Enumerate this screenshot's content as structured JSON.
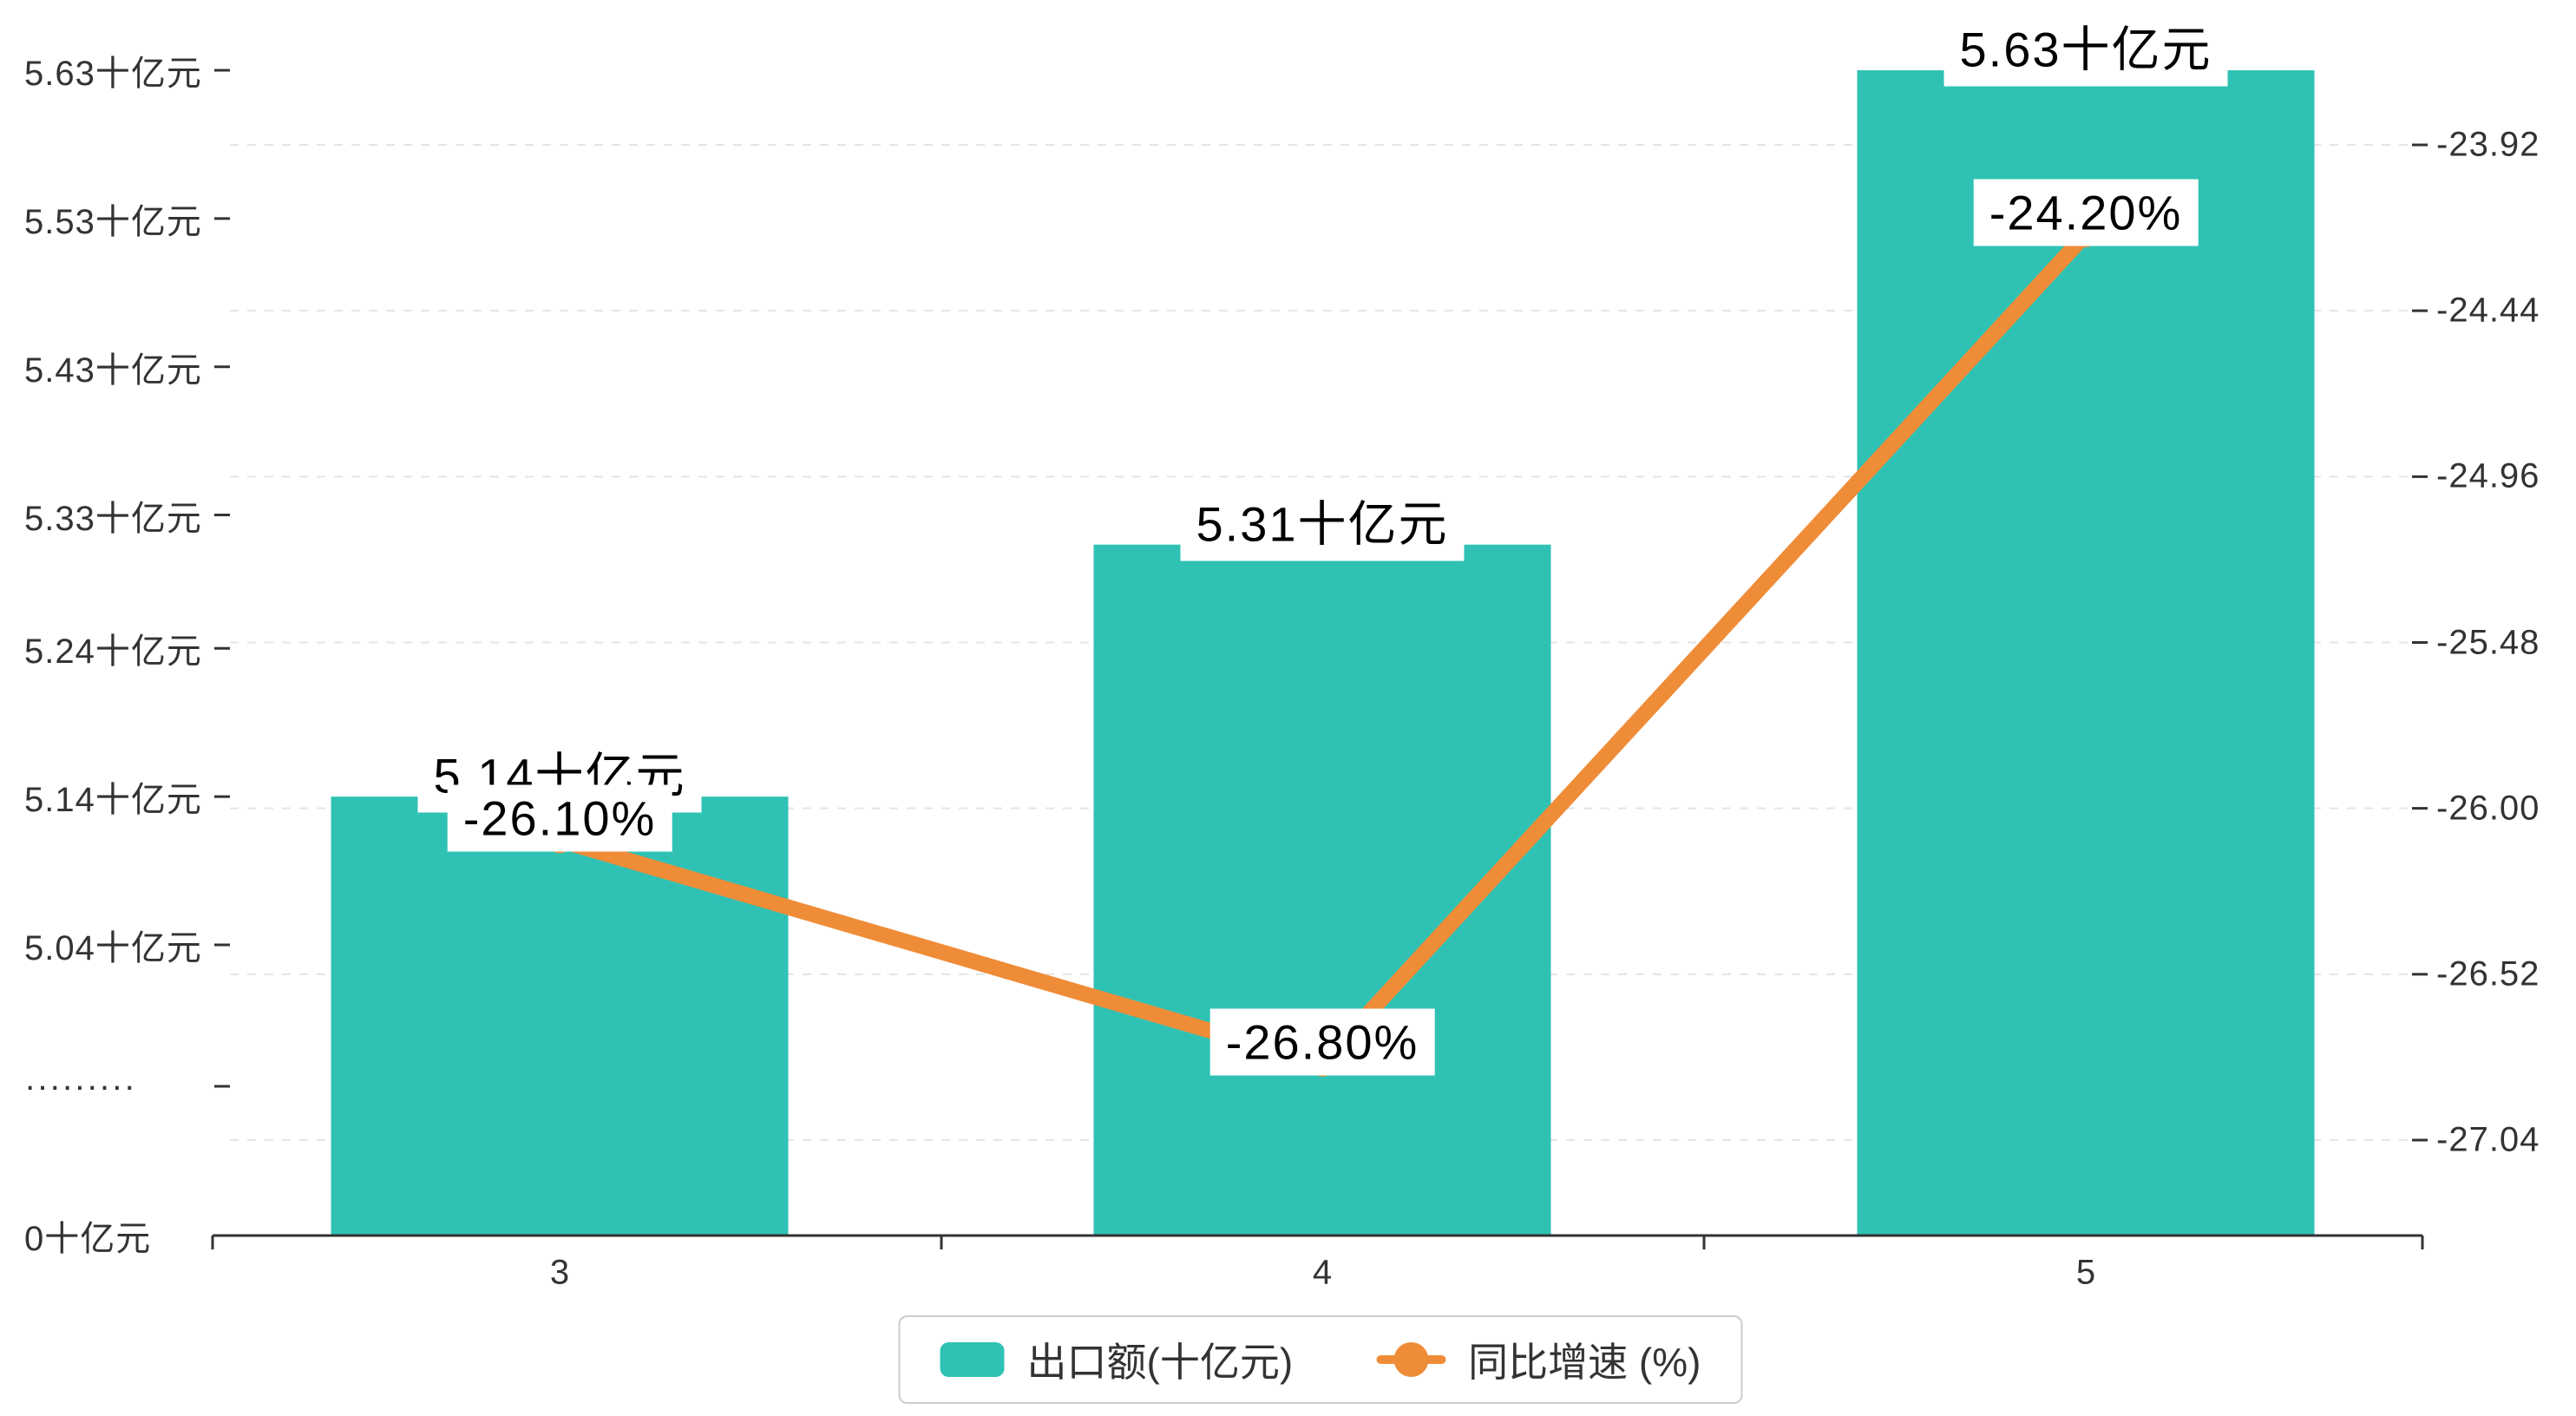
{
  "chart_data": {
    "type": "bar+line",
    "categories": [
      "3",
      "4",
      "5"
    ],
    "series": [
      {
        "name": "出口额(十亿元)",
        "type": "bar",
        "axis": "left",
        "color": "#2fc2b4",
        "values": [
          5.14,
          5.31,
          5.63
        ],
        "labels": [
          "5.14十亿元",
          "5.31十亿元",
          "5.63十亿元"
        ]
      },
      {
        "name": "同比增速 (%)",
        "type": "line",
        "axis": "right",
        "color": "#ef8c38",
        "values": [
          -26.1,
          -26.8,
          -24.2
        ],
        "labels": [
          "-26.10%",
          "-26.80%",
          "-24.20%"
        ]
      }
    ],
    "left_axis": {
      "unit": "十亿元",
      "axis_break": true,
      "tick_labels": [
        "0十亿元",
        "·········",
        "5.04十亿元",
        "5.14十亿元",
        "5.24十亿元",
        "5.33十亿元",
        "5.43十亿元",
        "5.53十亿元",
        "5.63十亿元"
      ],
      "values": [
        0,
        null,
        5.04,
        5.14,
        5.24,
        5.33,
        5.43,
        5.53,
        5.63
      ]
    },
    "right_axis": {
      "tick_labels": [
        "-23.92",
        "-24.44",
        "-24.96",
        "-25.48",
        "-26.00",
        "-26.52",
        "-27.04"
      ],
      "values": [
        -23.92,
        -24.44,
        -24.96,
        -25.48,
        -26.0,
        -26.52,
        -27.04
      ],
      "max": -23.92,
      "min": -27.04
    },
    "grid": {
      "horizontal_lines": "dashed",
      "aligned_to": "right_axis"
    },
    "legend": {
      "position": "bottom-center",
      "items": [
        "出口额(十亿元)",
        "同比增速 (%)"
      ]
    }
  },
  "colors": {
    "bar": "#2fc2b4",
    "line": "#ef8c38",
    "axis_text": "#333333",
    "gridline": "#e5e5e5",
    "label_text": "#000000",
    "legend_border": "#cccccc",
    "background": "#ffffff"
  }
}
